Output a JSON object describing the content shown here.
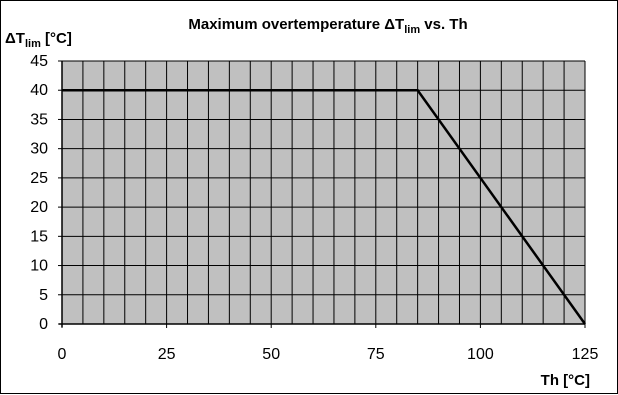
{
  "chart_data": {
    "type": "line",
    "title": {
      "prefix": "Maximum overtemperature ",
      "delta": "Δ",
      "symbol": "T",
      "subscript": "lim",
      "suffix": " vs. Th"
    },
    "ylabel": {
      "delta": "Δ",
      "symbol": "T",
      "subscript": "lim",
      "unit": " [°C]"
    },
    "xlabel": "Th [°C]",
    "xlim": [
      0,
      125
    ],
    "ylim": [
      0,
      45
    ],
    "x_ticks": [
      0,
      25,
      50,
      75,
      100,
      125
    ],
    "y_ticks": [
      0,
      5,
      10,
      15,
      20,
      25,
      30,
      35,
      40,
      45
    ],
    "x_minor_step": 5,
    "grid": true,
    "plot_background": "#c0c0c0",
    "line_color": "#000000",
    "series": [
      {
        "x": [
          0,
          85,
          125
        ],
        "y": [
          40,
          40,
          0
        ]
      }
    ]
  }
}
